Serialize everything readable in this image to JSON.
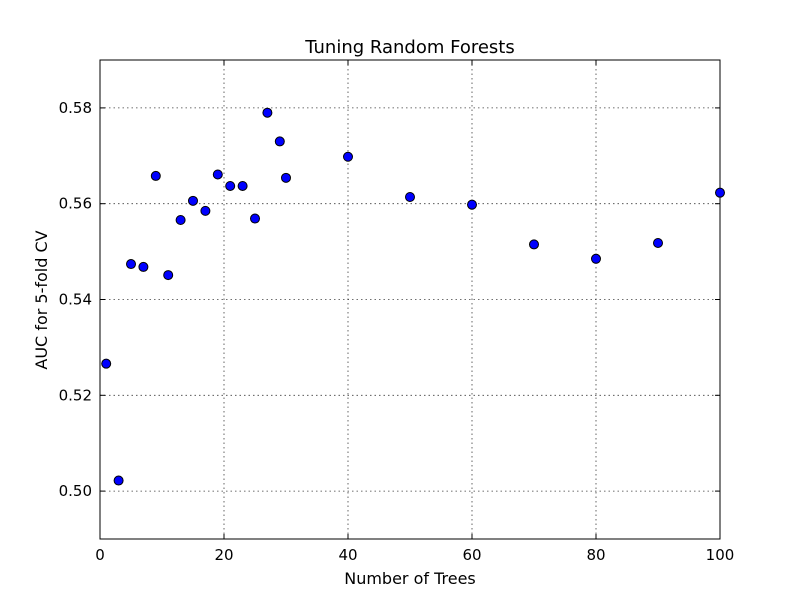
{
  "chart_data": {
    "type": "scatter",
    "title": "Tuning Random Forests",
    "xlabel": "Number of Trees",
    "ylabel": "AUC for 5-fold CV",
    "xlim": [
      0,
      100
    ],
    "ylim": [
      0.49,
      0.59
    ],
    "xticks": [
      0,
      20,
      40,
      60,
      80,
      100
    ],
    "yticks": [
      0.5,
      0.52,
      0.54,
      0.56,
      0.58
    ],
    "xtick_labels": [
      "0",
      "20",
      "40",
      "60",
      "80",
      "100"
    ],
    "ytick_labels": [
      "0.50",
      "0.52",
      "0.54",
      "0.56",
      "0.58"
    ],
    "grid": true,
    "marker_color": "#0000ff",
    "points": [
      {
        "x": 1,
        "y": 0.5266
      },
      {
        "x": 3,
        "y": 0.5022
      },
      {
        "x": 5,
        "y": 0.5474
      },
      {
        "x": 7,
        "y": 0.5468
      },
      {
        "x": 9,
        "y": 0.5658
      },
      {
        "x": 11,
        "y": 0.5451
      },
      {
        "x": 13,
        "y": 0.5566
      },
      {
        "x": 15,
        "y": 0.5606
      },
      {
        "x": 17,
        "y": 0.5585
      },
      {
        "x": 19,
        "y": 0.5661
      },
      {
        "x": 21,
        "y": 0.5637
      },
      {
        "x": 23,
        "y": 0.5637
      },
      {
        "x": 25,
        "y": 0.5569
      },
      {
        "x": 27,
        "y": 0.579
      },
      {
        "x": 29,
        "y": 0.573
      },
      {
        "x": 30,
        "y": 0.5654
      },
      {
        "x": 40,
        "y": 0.5698
      },
      {
        "x": 50,
        "y": 0.5614
      },
      {
        "x": 60,
        "y": 0.5598
      },
      {
        "x": 70,
        "y": 0.5515
      },
      {
        "x": 80,
        "y": 0.5485
      },
      {
        "x": 90,
        "y": 0.5518
      },
      {
        "x": 100,
        "y": 0.5623
      }
    ]
  }
}
